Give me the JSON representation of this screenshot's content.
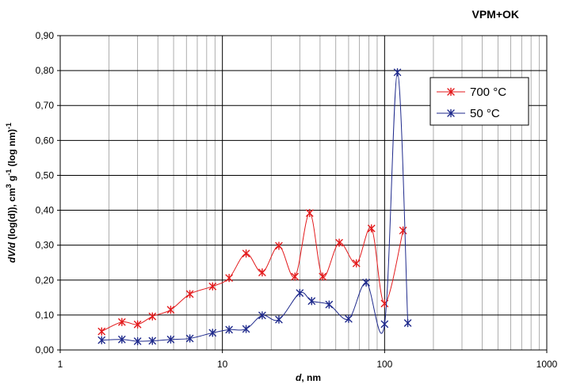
{
  "chart_data": {
    "type": "line",
    "title": "VPM+OK",
    "xlabel_italic": "d",
    "xlabel_rest": ", nm",
    "ylabel_italic": "dV/d",
    "ylabel_rest": " (log(d)), cm",
    "ylabel_tail": " g",
    "ylabel_tail2": " (log nm)",
    "ylabel_sup3": "3",
    "ylabel_supneg1": "-1",
    "x_scale": "log",
    "xlim": [
      1,
      1000
    ],
    "ylim": [
      0,
      0.9
    ],
    "x_ticks": [
      "1",
      "10",
      "100",
      "1000"
    ],
    "y_ticks": [
      "0,00",
      "0,10",
      "0,20",
      "0,30",
      "0,40",
      "0,50",
      "0,60",
      "0,70",
      "0,80",
      "0,90"
    ],
    "grid": true,
    "legend_position": "top-right",
    "series": [
      {
        "name": "700 °C",
        "color": "#e31a1c",
        "x": [
          1.8,
          2.4,
          3.0,
          3.7,
          4.8,
          6.3,
          8.7,
          11.0,
          14.0,
          17.6,
          22.3,
          28.0,
          34.5,
          41.5,
          52.5,
          67.0,
          83.0,
          100.0,
          130.0
        ],
        "y": [
          0.053,
          0.08,
          0.073,
          0.096,
          0.115,
          0.16,
          0.182,
          0.206,
          0.276,
          0.222,
          0.298,
          0.21,
          0.392,
          0.21,
          0.307,
          0.248,
          0.348,
          0.133,
          0.342
        ]
      },
      {
        "name": "50 °C",
        "color": "#1f2a8c",
        "x": [
          1.8,
          2.4,
          3.0,
          3.7,
          4.8,
          6.3,
          8.7,
          11.0,
          14.0,
          17.6,
          22.3,
          30.0,
          35.5,
          45.5,
          60.0,
          77.0,
          100.0,
          120.0,
          139.0
        ],
        "y": [
          0.028,
          0.03,
          0.025,
          0.026,
          0.03,
          0.033,
          0.049,
          0.058,
          0.06,
          0.099,
          0.087,
          0.163,
          0.14,
          0.13,
          0.089,
          0.193,
          0.074,
          0.795,
          0.077
        ]
      }
    ]
  }
}
